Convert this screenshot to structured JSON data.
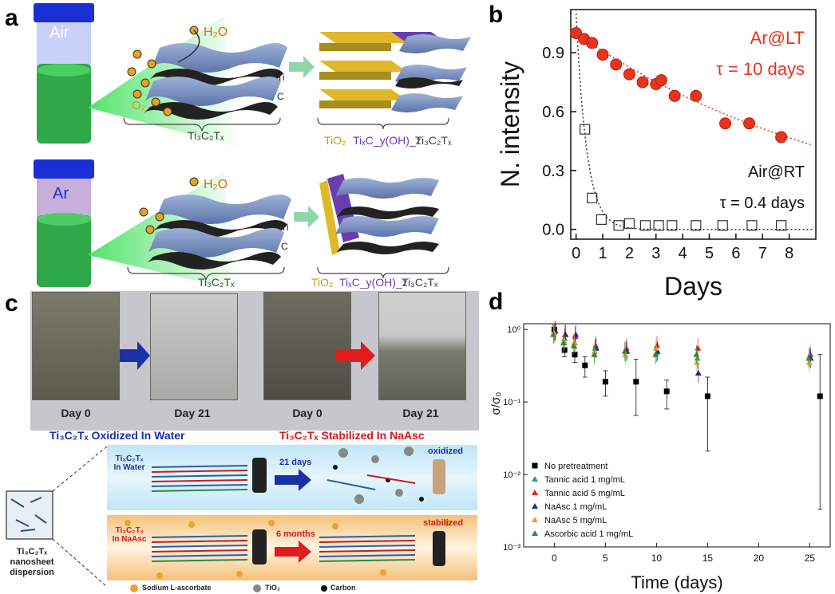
{
  "panels": {
    "a": "a",
    "b": "b",
    "c": "c",
    "d": "d"
  },
  "panel_a": {
    "top": {
      "gas": "Air",
      "h2o": "H₂O",
      "o2": "O₂",
      "ti": "Ti",
      "c": "C",
      "mxene": "Ti₃C₂Tₓ",
      "tio2": "TiO₂",
      "mid": "TiₓC_y(OH)_z",
      "mxene2": "Ti₃C₂Tₓ"
    },
    "bottom": {
      "gas": "Ar",
      "h2o": "H₂O",
      "ti": "Ti",
      "c": "C",
      "mxene": "Ti₃C₂Tₓ",
      "tio2": "TiO₂",
      "mid": "TiₓC_y(OH)_z",
      "mxene2": "Ti₃C₂Tₓ"
    }
  },
  "panel_c": {
    "days": [
      "Day 0",
      "Day 21",
      "Day 0",
      "Day 21"
    ],
    "caption_left": "Ti₃C₂Tₓ Oxidized In Water",
    "caption_right": "Ti₃C₂Tₓ Stabilized In NaAsc",
    "water_label": "Ti₃C₂Tₓ In Water",
    "naasc_label": "Ti₃C₂Tₓ In NaAsc",
    "arrow_21": "21 days",
    "arrow_6": "6 months",
    "oxidized": "oxidized",
    "stabilized": "stabilized",
    "dispersion": "Ti₃C₂Tₓ nanosheet dispersion",
    "legend": [
      "Sodium L-ascorbate",
      "TiO₂",
      "Carbon"
    ]
  },
  "chart_data": [
    {
      "type": "scatter",
      "panel": "b",
      "xlabel": "Days",
      "ylabel": "N. intensity",
      "xlim": [
        -0.2,
        9
      ],
      "ylim": [
        -0.05,
        1.12
      ],
      "xticks": [
        0,
        1,
        2,
        3,
        4,
        5,
        6,
        7,
        8
      ],
      "yticks": [
        0.0,
        0.3,
        0.6,
        0.9
      ],
      "ytick_labels": [
        "0.0",
        "0.3",
        "0.6",
        "0.9"
      ],
      "series": [
        {
          "name": "Ar@LT",
          "tau": "τ = 10 days",
          "color": "#e8341c",
          "marker": "filled-circle",
          "x": [
            0,
            0.3,
            0.6,
            1.0,
            1.5,
            2.0,
            2.5,
            3.0,
            3.2,
            3.7,
            4.5,
            5.6,
            6.5,
            7.7
          ],
          "y": [
            1.0,
            0.97,
            0.95,
            0.89,
            0.84,
            0.79,
            0.75,
            0.74,
            0.76,
            0.68,
            0.68,
            0.54,
            0.54,
            0.47
          ]
        },
        {
          "name": "Air@RT",
          "tau": "τ = 0.4 days",
          "color": "#333333",
          "marker": "open-square",
          "x": [
            0.33,
            0.6,
            0.95,
            1.6,
            2.0,
            2.6,
            3.1,
            3.6,
            4.5,
            5.5,
            6.6,
            7.7
          ],
          "y": [
            0.51,
            0.16,
            0.05,
            0.02,
            0.03,
            0.02,
            0.02,
            0.02,
            0.02,
            0.02,
            0.02,
            0.02
          ]
        }
      ]
    },
    {
      "type": "scatter",
      "panel": "d",
      "xlabel": "Time (days)",
      "ylabel": "σ/σ₀",
      "yscale": "log",
      "xlim": [
        -3,
        27
      ],
      "ylim": [
        0.001,
        1.2
      ],
      "xticks": [
        0,
        5,
        10,
        15,
        20,
        25
      ],
      "ytick_labels": [
        "10⁰",
        "10⁻¹",
        "10⁻²",
        "10⁻³"
      ],
      "series": [
        {
          "name": "No pretreatment",
          "color": "#000000",
          "marker": "square",
          "x": [
            0,
            1,
            2,
            3,
            5,
            8,
            11,
            15,
            26
          ],
          "y": [
            1.0,
            0.52,
            0.45,
            0.32,
            0.19,
            0.19,
            0.14,
            0.12,
            0.12
          ],
          "err_lo": [
            0.85,
            0.42,
            0.35,
            0.22,
            0.12,
            0.065,
            0.08,
            0.021,
            0.0033
          ],
          "err_hi": [
            1.15,
            0.62,
            0.55,
            0.42,
            0.27,
            0.39,
            0.2,
            0.22,
            0.45
          ]
        },
        {
          "name": "Tannic acid 1 mg/mL",
          "color": "#1fa37a",
          "marker": "triangle",
          "x": [
            0,
            1,
            2,
            4,
            7,
            10,
            14,
            25
          ],
          "y": [
            0.9,
            0.75,
            0.65,
            0.55,
            0.5,
            0.48,
            0.4,
            0.42
          ]
        },
        {
          "name": "Tannic acid 5 mg/mL",
          "color": "#e02020",
          "marker": "triangle",
          "x": [
            0,
            1,
            2,
            4,
            7,
            10,
            14,
            25
          ],
          "y": [
            0.95,
            0.85,
            0.8,
            0.6,
            0.55,
            0.6,
            0.55,
            0.45
          ]
        },
        {
          "name": "NaAsc 1 mg/mL",
          "color": "#1a2a9c",
          "marker": "triangle",
          "x": [
            0,
            1,
            2,
            4,
            7,
            10,
            14,
            25
          ],
          "y": [
            0.95,
            0.85,
            0.85,
            0.55,
            0.5,
            0.5,
            0.25,
            0.4
          ]
        },
        {
          "name": "NaAsc 5 mg/mL",
          "color": "#f2992c",
          "marker": "triangle",
          "x": [
            0,
            1,
            2,
            4,
            7,
            10,
            14,
            25
          ],
          "y": [
            0.9,
            0.7,
            0.65,
            0.5,
            0.45,
            0.55,
            0.35,
            0.35
          ]
        },
        {
          "name": "Ascorbic acid 1 mg/mL",
          "color": "#2e8b2e",
          "marker": "triangle",
          "x": [
            0,
            1,
            2,
            4,
            7,
            10,
            14,
            25
          ],
          "y": [
            0.85,
            0.65,
            0.6,
            0.45,
            0.5,
            0.45,
            0.45,
            0.4
          ]
        }
      ]
    }
  ]
}
